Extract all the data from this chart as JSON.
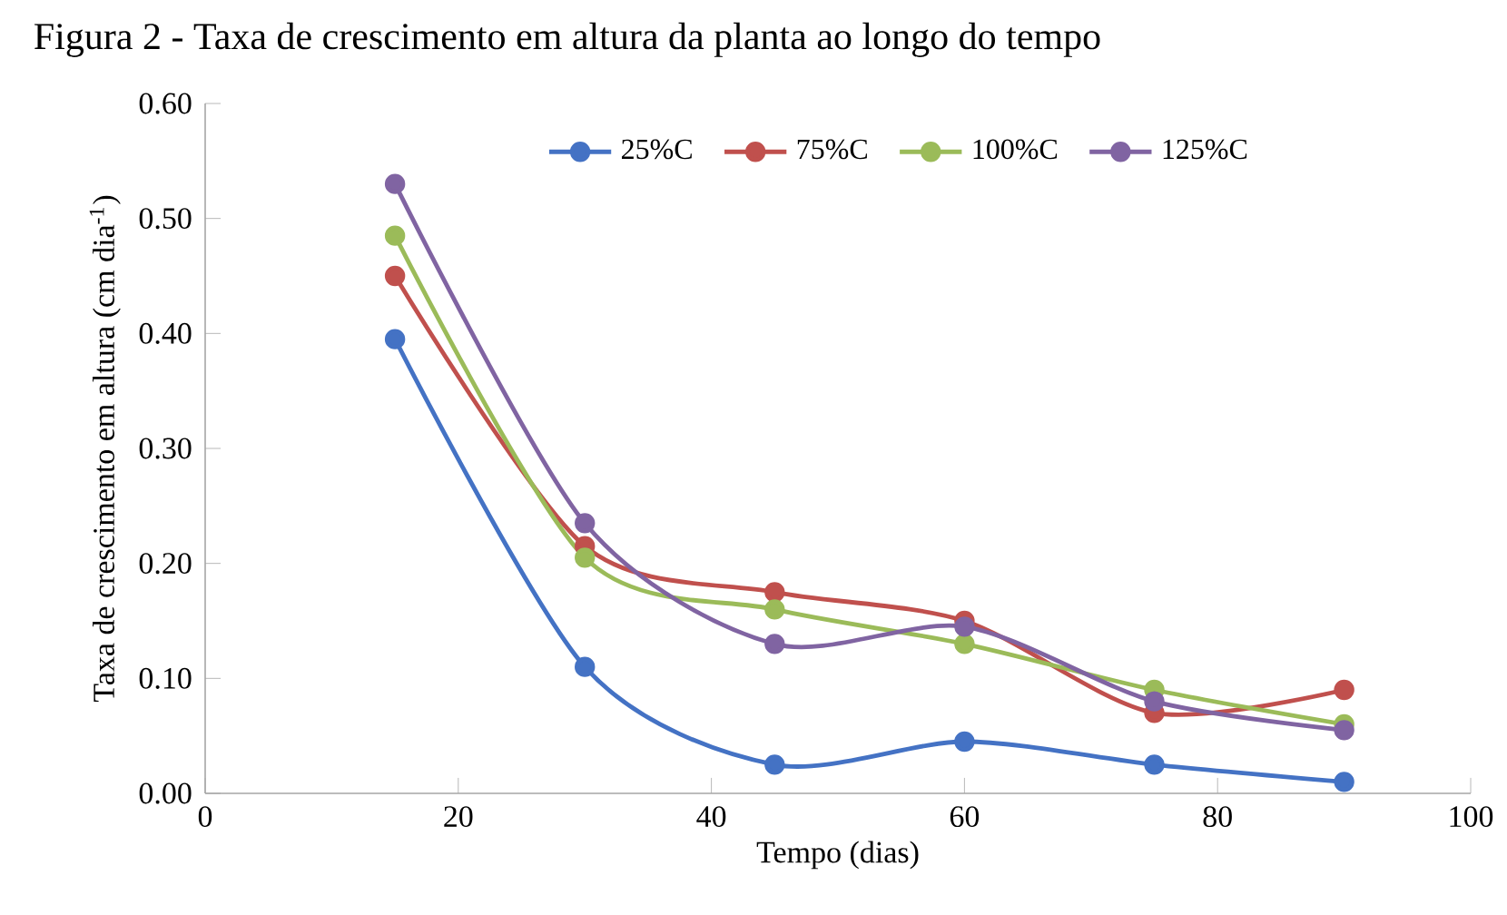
{
  "chart_data": {
    "type": "line",
    "title": "Figura 2 - Taxa de crescimento em altura da planta ao longo do tempo",
    "xlabel": "Tempo (dias)",
    "ylabel": "Taxa de crescimento em altura (cm dia$^{-1}$)",
    "x": [
      15,
      30,
      45,
      60,
      75,
      90
    ],
    "series": [
      {
        "name": "25%C",
        "color": "#4472c4",
        "values": [
          0.395,
          0.11,
          0.025,
          0.045,
          0.025,
          0.01
        ]
      },
      {
        "name": "75%C",
        "color": "#c0504d",
        "values": [
          0.45,
          0.215,
          0.175,
          0.15,
          0.07,
          0.09
        ]
      },
      {
        "name": "100%C",
        "color": "#9bbb59",
        "values": [
          0.485,
          0.205,
          0.16,
          0.13,
          0.09,
          0.06
        ]
      },
      {
        "name": "125%C",
        "color": "#8064a2",
        "values": [
          0.53,
          0.235,
          0.13,
          0.145,
          0.08,
          0.055
        ]
      }
    ],
    "xlim": [
      0,
      100
    ],
    "xticks": [
      0,
      20,
      40,
      60,
      80,
      100
    ],
    "ylim": [
      0,
      0.6
    ],
    "yticks": [
      {
        "value": 0,
        "label": "0.00"
      },
      {
        "value": 0.1,
        "label": "0.10"
      },
      {
        "value": 0.2,
        "label": "0.20"
      },
      {
        "value": 0.3,
        "label": "0.30"
      },
      {
        "value": 0.4,
        "label": "0.40"
      },
      {
        "value": 0.5,
        "label": "0.50"
      },
      {
        "value": 0.6,
        "label": "0.60"
      }
    ],
    "grid": false,
    "legend": "top",
    "marker": "circle",
    "line_style": "solid"
  }
}
